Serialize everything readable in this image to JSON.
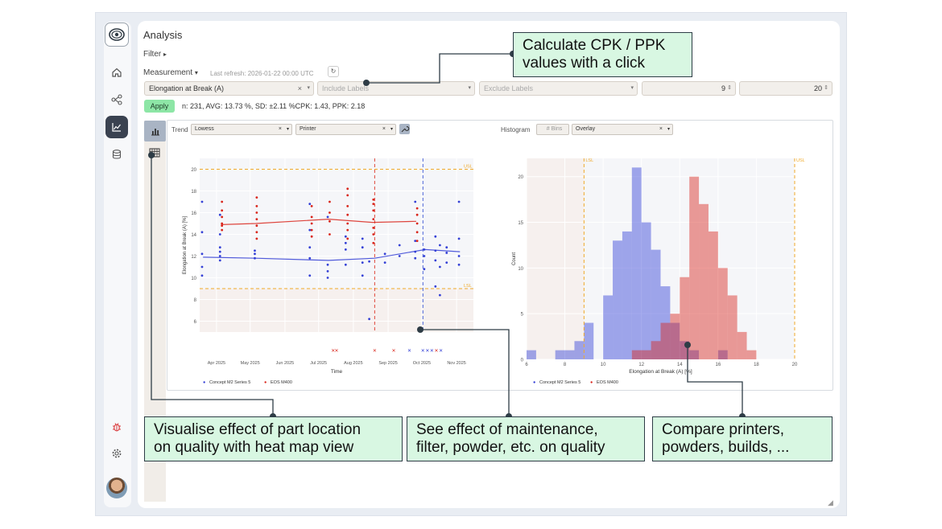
{
  "page": {
    "title": "Analysis"
  },
  "filter": {
    "label": "Filter",
    "caret": "▸"
  },
  "measurement": {
    "label": "Measurement",
    "caret": "▾",
    "last_refresh": "Last refresh: 2026-01-22 00:00 UTC",
    "refresh_icon": "↻"
  },
  "filters": {
    "measurement_value": "Elongation at Break (A)",
    "include_placeholder": "Include Labels",
    "exclude_placeholder": "Exclude Labels",
    "num1": "9",
    "num2": "20",
    "clear": "×",
    "dropdown": "▾",
    "spin": "⇕"
  },
  "apply": {
    "label": "Apply"
  },
  "stats": "n: 231, AVG: 13.73 %, SD: ±2.11 %CPK: 1.43, PPK: 2.18",
  "trend": {
    "label": "Trend",
    "smoothing": "Lowess",
    "group": "Printer"
  },
  "histogram": {
    "label": "Histogram",
    "bins_placeholder": "# Bins",
    "mode": "Overlay"
  },
  "icons": {
    "logo": "eye-logo-icon",
    "home": "home-icon",
    "network": "network-icon",
    "analysis": "chart-line-icon",
    "database": "database-icon",
    "bug": "bug-icon",
    "settings": "gear-icon",
    "bar_chart": "bar-chart-icon",
    "heatmap": "grid-icon",
    "wrench": "wrench-icon",
    "resize": "resize-handle-icon"
  },
  "colors": {
    "concept": "#3440d6",
    "eos": "#d9261c",
    "spec": "#f0a92a",
    "maintenance_red": "#e0473a",
    "maintenance_blue": "#4a63d6",
    "callout_bg": "#d8f7e2",
    "accent_green": "#8de6a6"
  },
  "callouts": {
    "cpk": [
      "Calculate CPK / PPK",
      "values with a click"
    ],
    "heatmap": [
      "Visualise effect of part location",
      "on quality with heat map view"
    ],
    "maintenance": [
      "See effect of maintenance,",
      "filter, powder, etc. on quality"
    ],
    "compare": [
      "Compare printers,",
      "powders, builds, ..."
    ]
  },
  "chart_data": [
    {
      "type": "scatter",
      "title": "",
      "xlabel": "Time",
      "ylabel": "Elongation at Break (A) [%]",
      "ylim": [
        5,
        21
      ],
      "yticks": [
        6,
        8,
        10,
        12,
        14,
        16,
        18,
        20
      ],
      "xticks": [
        "Apr 2025",
        "May 2025",
        "Jun 2025",
        "Jul 2025",
        "Aug 2025",
        "Sep 2025",
        "Oct 2025",
        "Nov 2025"
      ],
      "spec_limits": {
        "USL": 20,
        "LSL": 9
      },
      "usl_label": "USL",
      "lsl_label": "LSL",
      "maintenance_lines": [
        "2025-08-20",
        "2025-10-02"
      ],
      "series": [
        {
          "name": "Concept M2 Series 5",
          "marker": "●",
          "points": [
            [
              "2025-03-20",
              11.0
            ],
            [
              "2025-03-20",
              12.2
            ],
            [
              "2025-03-20",
              14.2
            ],
            [
              "2025-03-20",
              17.0
            ],
            [
              "2025-03-20",
              10.2
            ],
            [
              "2025-04-05",
              12.0
            ],
            [
              "2025-04-05",
              11.6
            ],
            [
              "2025-04-05",
              12.4
            ],
            [
              "2025-04-05",
              12.8
            ],
            [
              "2025-04-05",
              15.8
            ],
            [
              "2025-04-05",
              14.0
            ],
            [
              "2025-05-06",
              12.2
            ],
            [
              "2025-05-06",
              11.8
            ],
            [
              "2025-05-06",
              12.5
            ],
            [
              "2025-06-24",
              10.2
            ],
            [
              "2025-06-24",
              12.8
            ],
            [
              "2025-06-24",
              14.4
            ],
            [
              "2025-06-24",
              11.8
            ],
            [
              "2025-06-24",
              16.8
            ],
            [
              "2025-07-10",
              10.0
            ],
            [
              "2025-07-10",
              11.2
            ],
            [
              "2025-07-10",
              10.6
            ],
            [
              "2025-07-10",
              15.6
            ],
            [
              "2025-07-26",
              11.2
            ],
            [
              "2025-07-26",
              12.6
            ],
            [
              "2025-07-26",
              13.2
            ],
            [
              "2025-07-26",
              13.8
            ],
            [
              "2025-08-10",
              10.2
            ],
            [
              "2025-08-10",
              11.4
            ],
            [
              "2025-08-10",
              12.8
            ],
            [
              "2025-08-10",
              13.6
            ],
            [
              "2025-08-16",
              6.2
            ],
            [
              "2025-08-16",
              11.5
            ],
            [
              "2025-08-30",
              11.4
            ],
            [
              "2025-08-30",
              12.2
            ],
            [
              "2025-09-12",
              12.0
            ],
            [
              "2025-09-12",
              13.0
            ],
            [
              "2025-09-26",
              12.4
            ],
            [
              "2025-09-26",
              13.4
            ],
            [
              "2025-09-26",
              11.8
            ],
            [
              "2025-09-26",
              17.0
            ],
            [
              "2025-10-04",
              12.6
            ],
            [
              "2025-10-04",
              12.0
            ],
            [
              "2025-10-04",
              10.8
            ],
            [
              "2025-10-14",
              11.6
            ],
            [
              "2025-10-14",
              12.5
            ],
            [
              "2025-10-14",
              13.8
            ],
            [
              "2025-10-14",
              9.2
            ],
            [
              "2025-10-18",
              11.0
            ],
            [
              "2025-10-18",
              13.0
            ],
            [
              "2025-10-18",
              8.4
            ],
            [
              "2025-10-24",
              11.4
            ],
            [
              "2025-10-24",
              12.3
            ],
            [
              "2025-10-24",
              12.8
            ],
            [
              "2025-11-04",
              11.2
            ],
            [
              "2025-11-04",
              12.0
            ],
            [
              "2025-11-04",
              13.6
            ],
            [
              "2025-11-04",
              17.0
            ]
          ],
          "trend": [
            [
              "2025-03-20",
              11.9
            ],
            [
              "2025-05-06",
              11.8
            ],
            [
              "2025-07-10",
              11.6
            ],
            [
              "2025-08-20",
              11.8
            ],
            [
              "2025-10-04",
              12.6
            ],
            [
              "2025-11-04",
              12.4
            ]
          ]
        },
        {
          "name": "EOS M400",
          "marker": "●",
          "points": [
            [
              "2025-04-05",
              14.4
            ],
            [
              "2025-04-05",
              15.0
            ],
            [
              "2025-04-05",
              15.6
            ],
            [
              "2025-04-05",
              16.2
            ],
            [
              "2025-04-05",
              17.0
            ],
            [
              "2025-04-05",
              14.8
            ],
            [
              "2025-05-06",
              13.6
            ],
            [
              "2025-05-06",
              14.2
            ],
            [
              "2025-05-06",
              14.8
            ],
            [
              "2025-05-06",
              15.4
            ],
            [
              "2025-05-06",
              16.0
            ],
            [
              "2025-05-06",
              16.6
            ],
            [
              "2025-05-06",
              17.4
            ],
            [
              "2025-06-24",
              13.8
            ],
            [
              "2025-06-24",
              14.4
            ],
            [
              "2025-06-24",
              15.0
            ],
            [
              "2025-06-24",
              15.6
            ],
            [
              "2025-06-24",
              16.6
            ],
            [
              "2025-07-10",
              14.0
            ],
            [
              "2025-07-10",
              15.2
            ],
            [
              "2025-07-10",
              16.0
            ],
            [
              "2025-07-10",
              17.0
            ],
            [
              "2025-07-26",
              13.6
            ],
            [
              "2025-07-26",
              14.4
            ],
            [
              "2025-07-26",
              15.0
            ],
            [
              "2025-07-26",
              15.8
            ],
            [
              "2025-07-26",
              16.6
            ],
            [
              "2025-07-26",
              17.6
            ],
            [
              "2025-07-26",
              18.2
            ],
            [
              "2025-08-18",
              13.2
            ],
            [
              "2025-08-18",
              14.0
            ],
            [
              "2025-08-18",
              14.6
            ],
            [
              "2025-08-18",
              15.4
            ],
            [
              "2025-08-18",
              16.2
            ],
            [
              "2025-08-18",
              17.2
            ],
            [
              "2025-08-18",
              16.8
            ],
            [
              "2025-09-26",
              13.4
            ],
            [
              "2025-09-26",
              14.2
            ],
            [
              "2025-09-26",
              15.0
            ],
            [
              "2025-09-26",
              15.8
            ],
            [
              "2025-09-26",
              16.4
            ]
          ],
          "trend": [
            [
              "2025-04-05",
              14.9
            ],
            [
              "2025-05-06",
              15.0
            ],
            [
              "2025-07-10",
              15.4
            ],
            [
              "2025-08-18",
              15.1
            ],
            [
              "2025-09-26",
              15.2
            ]
          ]
        }
      ],
      "events": [
        {
          "date": "2025-07-14",
          "color": "#d9261c"
        },
        {
          "date": "2025-07-17",
          "color": "#d9261c"
        },
        {
          "date": "2025-08-20",
          "color": "#d9261c"
        },
        {
          "date": "2025-09-06",
          "color": "#d9261c"
        },
        {
          "date": "2025-09-20",
          "color": "#3440d6"
        },
        {
          "date": "2025-10-02",
          "color": "#3440d6"
        },
        {
          "date": "2025-10-06",
          "color": "#3440d6"
        },
        {
          "date": "2025-10-10",
          "color": "#3440d6"
        },
        {
          "date": "2025-10-14",
          "color": "#d9261c"
        },
        {
          "date": "2025-10-18",
          "color": "#3440d6"
        }
      ],
      "legend": "bottom-left",
      "grid": true
    },
    {
      "type": "bar",
      "title": "",
      "xlabel": "Elongation at Break (A) [%]",
      "ylabel": "Count",
      "xlim": [
        6,
        20
      ],
      "ylim": [
        0,
        22
      ],
      "xticks": [
        6,
        8,
        10,
        12,
        14,
        16,
        18,
        20
      ],
      "yticks": [
        0,
        5,
        10,
        15,
        20
      ],
      "bin_width": 0.5,
      "spec_limits": {
        "USL": 20,
        "LSL": 9
      },
      "usl_label": "USL",
      "lsl_label": "LSL",
      "series": [
        {
          "name": "Concept M2 Series 5",
          "bins": [
            6.0,
            6.5,
            7.0,
            7.5,
            8.0,
            8.5,
            9.0,
            9.5,
            10.0,
            10.5,
            11.0,
            11.5,
            12.0,
            12.5,
            13.0,
            13.5,
            14.0,
            14.5,
            15.0,
            15.5,
            16.0
          ],
          "counts": [
            1,
            0,
            0,
            1,
            1,
            2,
            4,
            0,
            7,
            13,
            14,
            21,
            15,
            12,
            8,
            4,
            2,
            1,
            0,
            0,
            1
          ]
        },
        {
          "name": "EOS M400",
          "bins": [
            11.5,
            12.0,
            12.5,
            13.0,
            13.5,
            14.0,
            14.5,
            15.0,
            15.5,
            16.0,
            16.5,
            17.0,
            17.5
          ],
          "counts": [
            1,
            1,
            2,
            4,
            5,
            9,
            20,
            17,
            14,
            10,
            7,
            3,
            1
          ]
        }
      ],
      "legend": "bottom-left"
    }
  ]
}
